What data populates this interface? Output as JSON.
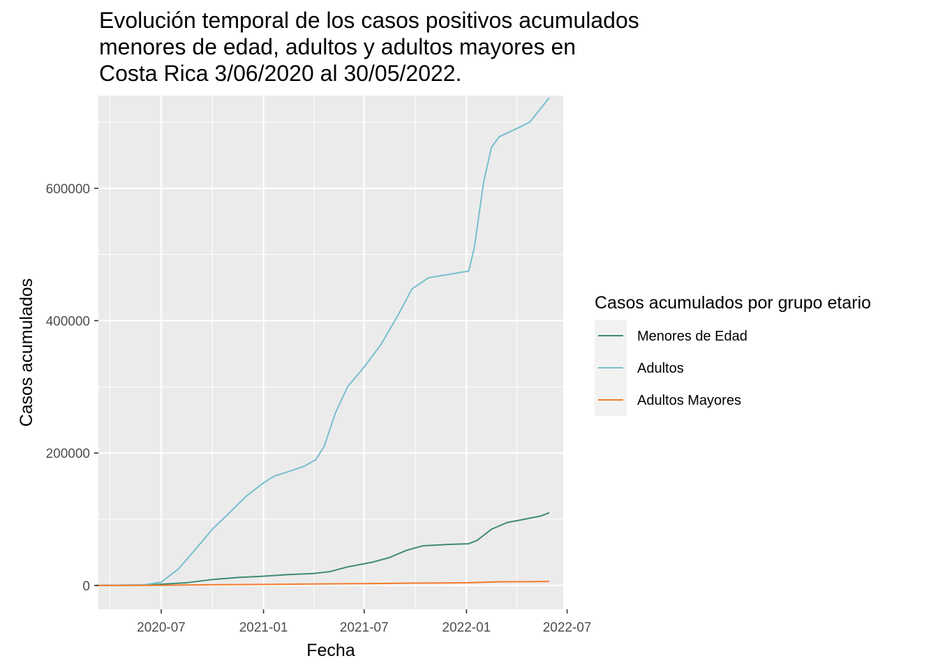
{
  "chart_data": {
    "type": "line",
    "title_lines": [
      "Evolución temporal de los casos positivos acumulados",
      "menores de edad, adultos y adultos mayores en",
      "Costa Rica 3/06/2020 al 30/05/2022."
    ],
    "xlabel": "Fecha",
    "ylabel": "Casos acumulados",
    "x_ticks": [
      "2020-07",
      "2021-01",
      "2021-07",
      "2022-01",
      "2022-07"
    ],
    "y_ticks": [
      "0",
      "200000",
      "400000",
      "600000"
    ],
    "ylim": [
      -36000,
      740000
    ],
    "xlim": [
      "2020-03-10",
      "2022-06-24"
    ],
    "grid": true,
    "legend": {
      "title": "Casos acumulados por grupo etario",
      "position": "right"
    },
    "series": [
      {
        "name": "Menores de Edad",
        "color": "#3e8a73",
        "points": [
          [
            "2020-03-06",
            0
          ],
          [
            "2020-06-01",
            400
          ],
          [
            "2020-07-01",
            2000
          ],
          [
            "2020-08-15",
            4000
          ],
          [
            "2020-10-01",
            9000
          ],
          [
            "2020-11-15",
            12000
          ],
          [
            "2021-01-01",
            14000
          ],
          [
            "2021-02-15",
            16500
          ],
          [
            "2021-04-01",
            18000
          ],
          [
            "2021-05-01",
            21000
          ],
          [
            "2021-06-01",
            28000
          ],
          [
            "2021-07-15",
            35000
          ],
          [
            "2021-08-15",
            42000
          ],
          [
            "2021-09-15",
            53000
          ],
          [
            "2021-10-15",
            60000
          ],
          [
            "2021-12-01",
            62000
          ],
          [
            "2022-01-05",
            63000
          ],
          [
            "2022-01-20",
            68000
          ],
          [
            "2022-02-15",
            85000
          ],
          [
            "2022-03-15",
            95000
          ],
          [
            "2022-04-15",
            100000
          ],
          [
            "2022-05-15",
            105000
          ],
          [
            "2022-05-30",
            110000
          ]
        ]
      },
      {
        "name": "Adultos",
        "color": "#76bfcc",
        "points": [
          [
            "2020-03-06",
            0
          ],
          [
            "2020-06-01",
            1000
          ],
          [
            "2020-07-01",
            5000
          ],
          [
            "2020-08-01",
            25000
          ],
          [
            "2020-09-01",
            55000
          ],
          [
            "2020-10-01",
            85000
          ],
          [
            "2020-11-01",
            110000
          ],
          [
            "2020-12-01",
            135000
          ],
          [
            "2021-01-01",
            155000
          ],
          [
            "2021-01-20",
            165000
          ],
          [
            "2021-02-15",
            172000
          ],
          [
            "2021-03-15",
            180000
          ],
          [
            "2021-04-05",
            190000
          ],
          [
            "2021-04-20",
            210000
          ],
          [
            "2021-05-10",
            260000
          ],
          [
            "2021-06-01",
            300000
          ],
          [
            "2021-07-01",
            330000
          ],
          [
            "2021-08-01",
            365000
          ],
          [
            "2021-09-01",
            410000
          ],
          [
            "2021-09-25",
            448000
          ],
          [
            "2021-10-25",
            465000
          ],
          [
            "2021-12-01",
            470000
          ],
          [
            "2022-01-05",
            475000
          ],
          [
            "2022-01-15",
            510000
          ],
          [
            "2022-02-01",
            610000
          ],
          [
            "2022-02-15",
            662000
          ],
          [
            "2022-03-01",
            678000
          ],
          [
            "2022-04-01",
            690000
          ],
          [
            "2022-04-25",
            700000
          ],
          [
            "2022-05-30",
            737000
          ]
        ]
      },
      {
        "name": "Adultos Mayores",
        "color": "#f37b2a",
        "points": [
          [
            "2020-03-06",
            0
          ],
          [
            "2020-07-01",
            200
          ],
          [
            "2020-10-01",
            1000
          ],
          [
            "2021-01-01",
            1500
          ],
          [
            "2021-04-01",
            2200
          ],
          [
            "2021-07-01",
            2800
          ],
          [
            "2021-10-01",
            3500
          ],
          [
            "2022-01-01",
            4000
          ],
          [
            "2022-03-01",
            5500
          ],
          [
            "2022-05-30",
            6000
          ]
        ]
      }
    ]
  }
}
